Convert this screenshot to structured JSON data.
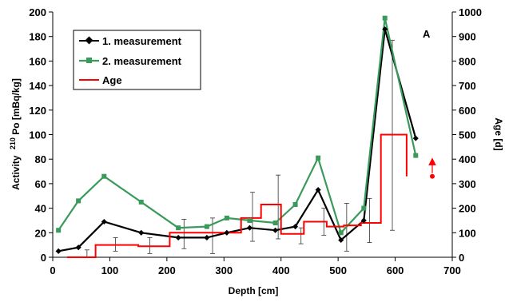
{
  "chart_data": {
    "type": "line",
    "panel_label": "A",
    "xlabel": "Depth [cm]",
    "ylabel_left_prefix": "Activity",
    "ylabel_left_sup": "210",
    "ylabel_left_suffix": "Po [mBq/kg]",
    "ylabel_right": "Age [d]",
    "xlim": [
      0,
      700
    ],
    "ylim_left": [
      0,
      200
    ],
    "ylim_right": [
      0,
      1000
    ],
    "x_ticks": [
      "0",
      "100",
      "200",
      "300",
      "400",
      "500",
      "600",
      "700"
    ],
    "y_left_ticks": [
      "0",
      "20",
      "40",
      "60",
      "80",
      "100",
      "120",
      "140",
      "160",
      "180",
      "200"
    ],
    "y_right_ticks": [
      "0",
      "100",
      "200",
      "300",
      "400",
      "500",
      "600",
      "700",
      "800",
      "900",
      "1000"
    ],
    "grid": false,
    "legend_position": "top-left",
    "colors": {
      "measurement_1": "#000000",
      "measurement_2": "#3a9a5b",
      "age": "#ff0000"
    },
    "series": [
      {
        "name": "1. measurement",
        "axis": "left",
        "marker": "diamond",
        "x": [
          10,
          45,
          90,
          155,
          220,
          270,
          305,
          345,
          390,
          425,
          465,
          505,
          545,
          582,
          636
        ],
        "y": [
          5,
          8,
          29,
          20,
          16,
          16,
          20,
          24,
          22,
          25,
          55,
          14,
          30,
          186,
          97
        ]
      },
      {
        "name": "2. measurement",
        "axis": "left",
        "marker": "square",
        "x": [
          10,
          45,
          90,
          155,
          220,
          270,
          305,
          345,
          390,
          425,
          465,
          505,
          545,
          582,
          636
        ],
        "y": [
          22,
          46,
          66,
          45,
          24,
          25,
          32,
          30,
          28,
          43,
          81,
          20,
          40,
          195,
          83
        ]
      },
      {
        "name": "Age",
        "axis": "right",
        "type": "step",
        "x": [
          25,
          75,
          75,
          150,
          150,
          205,
          205,
          275,
          275,
          330,
          330,
          365,
          365,
          400,
          400,
          440,
          440,
          480,
          480,
          510,
          510,
          540,
          540,
          575,
          575,
          620,
          620
        ],
        "y": [
          0,
          0,
          50,
          50,
          45,
          45,
          100,
          100,
          100,
          100,
          160,
          160,
          215,
          215,
          95,
          95,
          145,
          145,
          125,
          125,
          130,
          130,
          140,
          140,
          500,
          500,
          330
        ]
      }
    ],
    "error_bars": [
      {
        "x": 60,
        "low": 0,
        "high": 6
      },
      {
        "x": 110,
        "low": 5,
        "high": 16
      },
      {
        "x": 170,
        "low": 3,
        "high": 16
      },
      {
        "x": 230,
        "low": 7,
        "high": 31
      },
      {
        "x": 280,
        "low": 3,
        "high": 32
      },
      {
        "x": 350,
        "low": 13,
        "high": 53
      },
      {
        "x": 395,
        "low": 15,
        "high": 67
      },
      {
        "x": 435,
        "low": 11,
        "high": 24
      },
      {
        "x": 475,
        "low": 18,
        "high": 40
      },
      {
        "x": 515,
        "low": 5,
        "high": 44
      },
      {
        "x": 555,
        "low": 12,
        "high": 48
      },
      {
        "x": 595,
        "low": 22,
        "high": 177
      }
    ],
    "age_arrow": {
      "x": 665,
      "y_from": 330,
      "y_to": 410
    }
  }
}
